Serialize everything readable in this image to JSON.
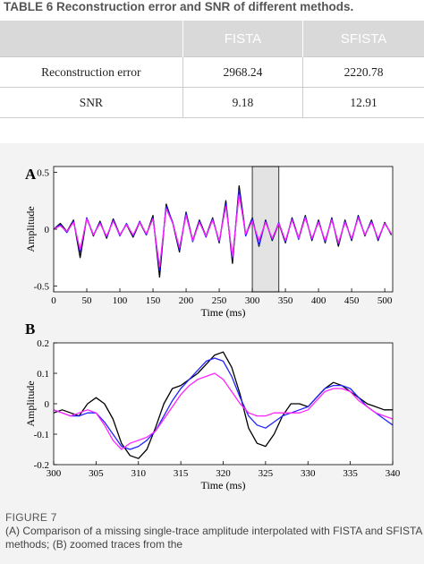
{
  "table": {
    "title": "TABLE 6 Reconstruction error and SNR of different methods.",
    "headers": [
      "",
      "FISTA",
      "SFISTA"
    ],
    "rows": [
      {
        "label": "Reconstruction error",
        "fista": "2968.24",
        "sfista": "2220.78"
      },
      {
        "label": "SNR",
        "fista": "9.18",
        "sfista": "12.91"
      }
    ]
  },
  "chart_data": [
    {
      "type": "line",
      "panel": "A",
      "xlabel": "Time (ms)",
      "ylabel": "Amplitude",
      "xlim": [
        0,
        512
      ],
      "ylim": [
        -0.55,
        0.55
      ],
      "xticks": [
        "0",
        "50",
        "100",
        "150",
        "200",
        "250",
        "300",
        "350",
        "400",
        "450",
        "500"
      ],
      "yticks": [
        "0.5",
        "0",
        "-0.5"
      ],
      "highlight_range": [
        300,
        340
      ],
      "series": [
        {
          "color": "#000000",
          "x": [
            0,
            10,
            20,
            30,
            40,
            50,
            60,
            70,
            80,
            90,
            100,
            110,
            120,
            130,
            140,
            150,
            160,
            170,
            180,
            190,
            200,
            210,
            220,
            230,
            240,
            250,
            260,
            270,
            280,
            290,
            300,
            310,
            320,
            330,
            340,
            350,
            360,
            370,
            380,
            390,
            400,
            410,
            420,
            430,
            440,
            450,
            460,
            470,
            480,
            490,
            500,
            510
          ],
          "y": [
            0,
            0.05,
            -0.02,
            0.08,
            -0.25,
            0.1,
            -0.06,
            0.07,
            -0.08,
            0.09,
            -0.05,
            0.04,
            -0.07,
            0.06,
            -0.05,
            0.12,
            -0.42,
            0.22,
            0.05,
            -0.2,
            0.15,
            -0.1,
            0.08,
            -0.06,
            0.1,
            -0.12,
            0.25,
            -0.3,
            0.38,
            -0.05,
            0.1,
            -0.15,
            0.08,
            -0.1,
            0.05,
            -0.12,
            0.1,
            -0.08,
            0.12,
            -0.1,
            0.08,
            -0.12,
            0.1,
            -0.15,
            0.08,
            -0.1,
            0.12,
            -0.06,
            0.08,
            -0.1,
            0.06,
            -0.05
          ]
        },
        {
          "color": "#2222ff",
          "x": [
            0,
            10,
            20,
            30,
            40,
            50,
            60,
            70,
            80,
            90,
            100,
            110,
            120,
            130,
            140,
            150,
            160,
            170,
            180,
            190,
            200,
            210,
            220,
            230,
            240,
            250,
            260,
            270,
            280,
            290,
            300,
            310,
            320,
            330,
            340,
            350,
            360,
            370,
            380,
            390,
            400,
            410,
            420,
            430,
            440,
            450,
            460,
            470,
            480,
            490,
            500,
            510
          ],
          "y": [
            0,
            0.04,
            -0.03,
            0.07,
            -0.2,
            0.1,
            -0.05,
            0.06,
            -0.07,
            0.08,
            -0.06,
            0.05,
            -0.06,
            0.07,
            -0.05,
            0.1,
            -0.36,
            0.2,
            0.06,
            -0.18,
            0.14,
            -0.11,
            0.07,
            -0.07,
            0.09,
            -0.11,
            0.22,
            -0.26,
            0.34,
            -0.06,
            0.09,
            -0.14,
            0.07,
            -0.09,
            0.06,
            -0.11,
            0.09,
            -0.09,
            0.11,
            -0.09,
            0.07,
            -0.11,
            0.09,
            -0.13,
            0.07,
            -0.09,
            0.11,
            -0.05,
            0.07,
            -0.09,
            0.05,
            -0.04
          ]
        },
        {
          "color": "#ff22ff",
          "x": [
            0,
            10,
            20,
            30,
            40,
            50,
            60,
            70,
            80,
            90,
            100,
            110,
            120,
            130,
            140,
            150,
            160,
            170,
            180,
            190,
            200,
            210,
            220,
            230,
            240,
            250,
            260,
            270,
            280,
            290,
            300,
            310,
            320,
            330,
            340,
            350,
            360,
            370,
            380,
            390,
            400,
            410,
            420,
            430,
            440,
            450,
            460,
            470,
            480,
            490,
            500,
            510
          ],
          "y": [
            0,
            0.03,
            -0.02,
            0.06,
            -0.18,
            0.09,
            -0.05,
            0.05,
            -0.06,
            0.07,
            -0.05,
            0.04,
            -0.05,
            0.06,
            -0.04,
            0.09,
            -0.33,
            0.18,
            0.05,
            -0.16,
            0.12,
            -0.1,
            0.06,
            -0.06,
            0.08,
            -0.1,
            0.2,
            -0.24,
            0.3,
            -0.04,
            0.07,
            -0.1,
            0.06,
            -0.08,
            0.05,
            -0.1,
            0.08,
            -0.08,
            0.1,
            -0.08,
            0.06,
            -0.1,
            0.08,
            -0.12,
            0.06,
            -0.08,
            0.1,
            -0.05,
            0.06,
            -0.08,
            0.05,
            -0.04
          ]
        }
      ]
    },
    {
      "type": "line",
      "panel": "B",
      "xlabel": "Time (ms)",
      "ylabel": "Amplitude",
      "xlim": [
        300,
        340
      ],
      "ylim": [
        -0.2,
        0.2
      ],
      "xticks": [
        "300",
        "305",
        "310",
        "315",
        "320",
        "325",
        "330",
        "335",
        "340"
      ],
      "yticks": [
        "0.2",
        "0.1",
        "0",
        "-0.1",
        "-0.2"
      ],
      "series": [
        {
          "color": "#000000",
          "x": [
            300,
            301,
            302,
            303,
            304,
            305,
            306,
            307,
            308,
            309,
            310,
            311,
            312,
            313,
            314,
            315,
            316,
            317,
            318,
            319,
            320,
            321,
            322,
            323,
            324,
            325,
            326,
            327,
            328,
            329,
            330,
            331,
            332,
            333,
            334,
            335,
            336,
            337,
            338,
            339,
            340
          ],
          "y": [
            -0.03,
            -0.02,
            -0.03,
            -0.04,
            0.0,
            0.02,
            0.0,
            -0.05,
            -0.13,
            -0.17,
            -0.18,
            -0.15,
            -0.08,
            0.0,
            0.05,
            0.06,
            0.08,
            0.1,
            0.13,
            0.16,
            0.17,
            0.12,
            0.03,
            -0.08,
            -0.13,
            -0.14,
            -0.1,
            -0.04,
            0.0,
            0.0,
            -0.01,
            0.02,
            0.05,
            0.07,
            0.06,
            0.04,
            0.02,
            0.0,
            -0.01,
            -0.02,
            -0.02
          ]
        },
        {
          "color": "#2222ff",
          "x": [
            300,
            301,
            302,
            303,
            304,
            305,
            306,
            307,
            308,
            309,
            310,
            311,
            312,
            313,
            314,
            315,
            316,
            317,
            318,
            319,
            320,
            321,
            322,
            323,
            324,
            325,
            326,
            327,
            328,
            329,
            330,
            331,
            332,
            333,
            334,
            335,
            336,
            337,
            338,
            339,
            340
          ],
          "y": [
            -0.02,
            -0.03,
            -0.04,
            -0.04,
            -0.03,
            -0.03,
            -0.06,
            -0.1,
            -0.14,
            -0.15,
            -0.14,
            -0.12,
            -0.09,
            -0.04,
            0.01,
            0.05,
            0.08,
            0.11,
            0.14,
            0.15,
            0.14,
            0.09,
            0.02,
            -0.04,
            -0.07,
            -0.08,
            -0.06,
            -0.04,
            -0.03,
            -0.02,
            -0.01,
            0.02,
            0.05,
            0.06,
            0.06,
            0.05,
            0.02,
            -0.01,
            -0.03,
            -0.05,
            -0.07
          ]
        },
        {
          "color": "#ff22ff",
          "x": [
            300,
            301,
            302,
            303,
            304,
            305,
            306,
            307,
            308,
            309,
            310,
            311,
            312,
            313,
            314,
            315,
            316,
            317,
            318,
            319,
            320,
            321,
            322,
            323,
            324,
            325,
            326,
            327,
            328,
            329,
            330,
            331,
            332,
            333,
            334,
            335,
            336,
            337,
            338,
            339,
            340
          ],
          "y": [
            -0.02,
            -0.03,
            -0.04,
            -0.03,
            -0.02,
            -0.03,
            -0.07,
            -0.12,
            -0.15,
            -0.13,
            -0.12,
            -0.11,
            -0.09,
            -0.05,
            -0.01,
            0.03,
            0.06,
            0.08,
            0.09,
            0.1,
            0.08,
            0.04,
            0.0,
            -0.03,
            -0.04,
            -0.04,
            -0.03,
            -0.03,
            -0.03,
            -0.03,
            -0.02,
            0.01,
            0.04,
            0.05,
            0.05,
            0.04,
            0.01,
            -0.01,
            -0.03,
            -0.04,
            -0.05
          ]
        }
      ]
    }
  ],
  "figure": {
    "label": "FIGURE 7",
    "caption": "(A) Comparison of a missing single-trace amplitude interpolated with FISTA and SFISTA methods; (B) zoomed traces from the",
    "panel_labels": [
      "A",
      "B"
    ]
  }
}
